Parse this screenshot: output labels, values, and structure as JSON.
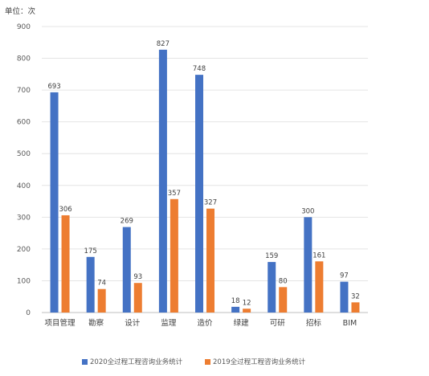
{
  "chart_data": {
    "type": "bar",
    "unit_label": "单位：次",
    "categories": [
      "项目管理",
      "勘察",
      "设计",
      "监理",
      "造价",
      "绿建",
      "可研",
      "招标",
      "BIM"
    ],
    "series": [
      {
        "name": "2020全过程工程咨询业务统计",
        "color": "#4472C4",
        "values": [
          693,
          175,
          269,
          827,
          748,
          18,
          159,
          300,
          97
        ]
      },
      {
        "name": "2019全过程工程咨询业务统计",
        "color": "#ED7D31",
        "values": [
          306,
          74,
          93,
          357,
          327,
          12,
          80,
          161,
          32
        ]
      }
    ],
    "ylim": [
      0,
      900
    ],
    "yticks": [
      0,
      100,
      200,
      300,
      400,
      500,
      600,
      700,
      800,
      900
    ],
    "grid": true,
    "legend_position": "bottom"
  }
}
